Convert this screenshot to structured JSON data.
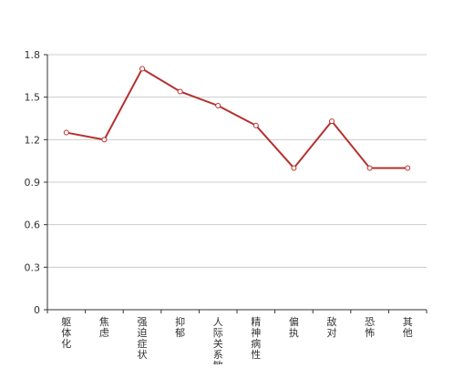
{
  "chart_data": {
    "type": "line",
    "title": "",
    "xlabel": "",
    "ylabel": "",
    "categories": [
      "躯体化",
      "焦虑",
      "强迫症状",
      "抑郁",
      "人际关系敏感",
      "精神病性",
      "偏执",
      "敌对",
      "恐怖",
      "其他"
    ],
    "series": [
      {
        "values": [
          1.25,
          1.2,
          1.7,
          1.54,
          1.44,
          1.3,
          1.0,
          1.33,
          1.0,
          1.0
        ]
      }
    ],
    "ylim": [
      0,
      1.8
    ],
    "yticks": [
      "0",
      "0.3",
      "0.6",
      "0.9",
      "1.2",
      "1.5",
      "1.8"
    ],
    "grid": true,
    "legend": "none",
    "colors": {
      "line": "#b5302e",
      "grid": "#cccccc",
      "axis": "#333333"
    }
  }
}
